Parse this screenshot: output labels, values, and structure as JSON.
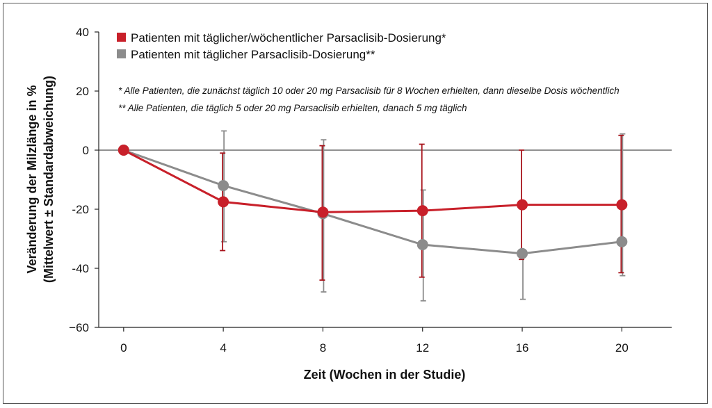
{
  "chart_data": {
    "type": "line",
    "x": [
      0,
      4,
      8,
      12,
      16,
      20
    ],
    "xlim": [
      -1,
      22
    ],
    "ylim": [
      -60,
      40
    ],
    "xticks": [
      "0",
      "4",
      "8",
      "12",
      "16",
      "20"
    ],
    "yticks": [
      "40",
      "20",
      "0",
      "-20",
      "-40",
      "−60"
    ],
    "ytick_values": [
      40,
      20,
      0,
      -20,
      -40,
      -60
    ],
    "xlabel": "Zeit (Wochen in der Studie)",
    "ylabel_line1": "Veränderung der Milzlänge in %",
    "ylabel_line2": "(Mittelwert ± Standardabweichung)",
    "zero_line": true,
    "grid": false,
    "legend_position": "top-left",
    "series": [
      {
        "name": "Patienten mit täglicher/wöchentlicher Parsaclisib-Dosierung*",
        "color": "#c8202a",
        "errbar_color": "#a8141c",
        "y": [
          0,
          -17.5,
          -21,
          -20.5,
          -18.5,
          -18.5
        ],
        "err_low": [
          0,
          -34,
          -44,
          -43,
          -37,
          -41.5
        ],
        "err_high": [
          0,
          -1,
          1.5,
          2,
          0,
          5
        ]
      },
      {
        "name": "Patienten mit täglicher Parsaclisib-Dosierung**",
        "color": "#8c8c8c",
        "errbar_color": "#8c8c8c",
        "y": [
          0,
          -12,
          -21.5,
          -32,
          -35,
          -31
        ],
        "err_low": [
          0,
          -31,
          -48,
          -51,
          -50.5,
          -42.5
        ],
        "err_high": [
          0,
          6.5,
          3.5,
          -13.5,
          -35,
          5.5
        ]
      }
    ],
    "notes": [
      "* Alle Patienten, die zunächst täglich 10 oder 20 mg Parsaclisib für 8 Wochen erhielten, dann dieselbe Dosis wöchentlich",
      "** Alle Patienten, die täglich 5 oder 20 mg Parsaclisib erhielten, danach 5 mg täglich"
    ]
  }
}
